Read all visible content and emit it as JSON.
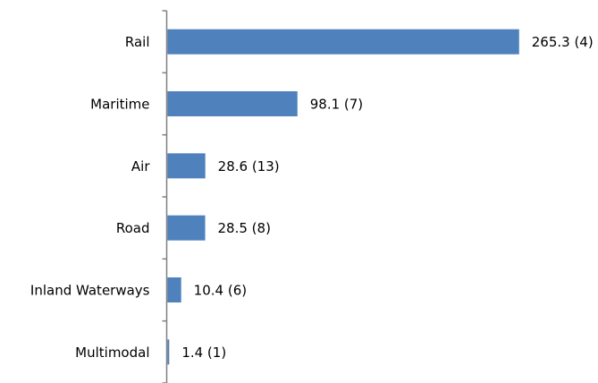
{
  "chart_data": {
    "type": "bar",
    "orientation": "horizontal",
    "categories": [
      "Rail",
      "Maritime",
      "Air",
      "Road",
      "Inland Waterways",
      "Multimodal"
    ],
    "values": [
      265.3,
      98.1,
      28.6,
      28.5,
      10.4,
      1.4
    ],
    "counts": [
      4,
      7,
      13,
      8,
      6,
      1
    ],
    "data_labels": [
      "265.3 (4)",
      "98.1 (7)",
      "28.6 (13)",
      "28.5 (8)",
      "10.4 (6)",
      "1.4 (1)"
    ],
    "xlim": [
      0,
      265.3
    ],
    "grid": false,
    "legend": "none",
    "bar_color": "#4F81BD",
    "axis_color": "#808080"
  }
}
